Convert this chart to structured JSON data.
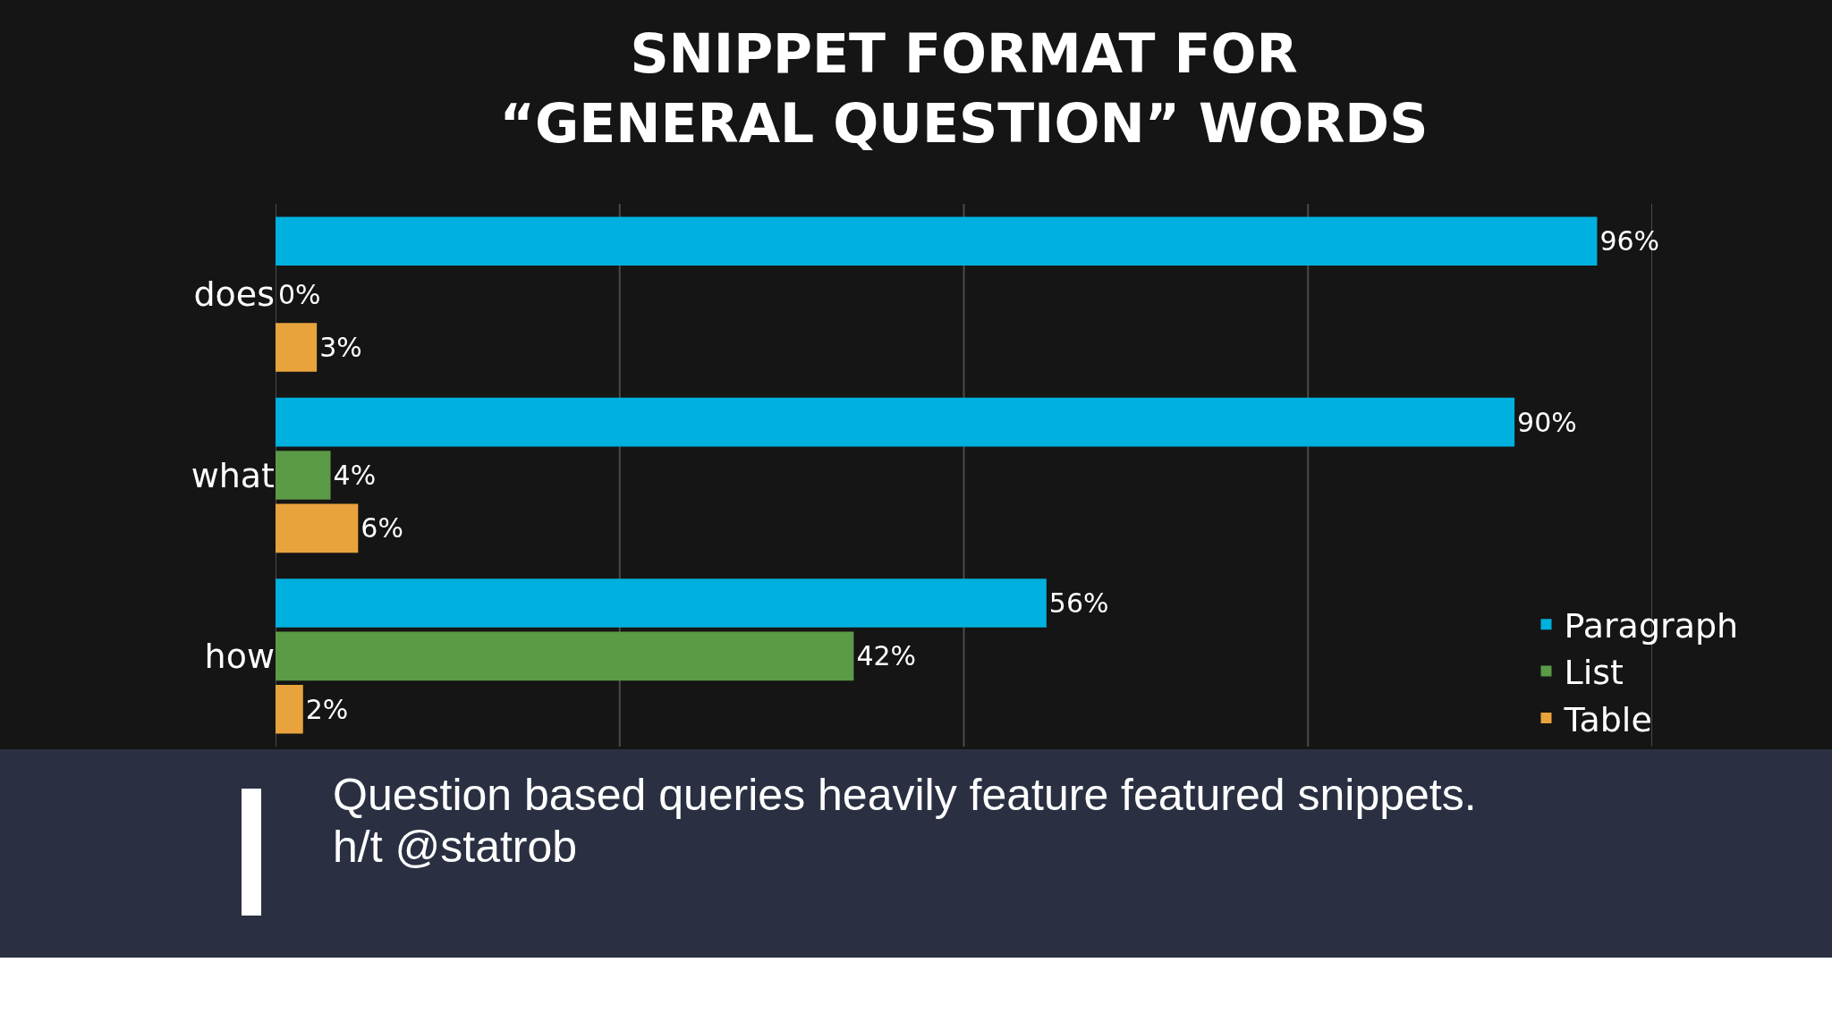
{
  "chart_data": {
    "type": "bar",
    "orientation": "horizontal",
    "title": "SNIPPET FORMAT FOR\n“GENERAL QUESTION” WORDS",
    "categories": [
      "does",
      "what",
      "how"
    ],
    "series": [
      {
        "name": "Paragraph",
        "color": "#00b0de",
        "values": [
          96,
          90,
          56
        ],
        "value_labels": [
          "96%",
          "90%",
          "56%"
        ]
      },
      {
        "name": "List",
        "color": "#5b9a46",
        "values": [
          0,
          4,
          42
        ],
        "value_labels": [
          "0%",
          "4%",
          "42%"
        ]
      },
      {
        "name": "Table",
        "color": "#e8a33c",
        "values": [
          3,
          6,
          2
        ],
        "value_labels": [
          "3%",
          "6%",
          "2%"
        ]
      }
    ],
    "xlim": [
      0,
      100
    ],
    "xticks": [
      {
        "value": 0,
        "label": null
      },
      {
        "value": 25,
        "label": null
      },
      {
        "value": 50,
        "label": null
      },
      {
        "value": 75,
        "label": null
      },
      {
        "value": 100,
        "label": null
      }
    ],
    "grid": "x",
    "tick_labels": "y",
    "legend": "bottom right",
    "annotations": [
      "Question based queries heavily feature featured snippets.",
      "h/t @statrob"
    ]
  }
}
